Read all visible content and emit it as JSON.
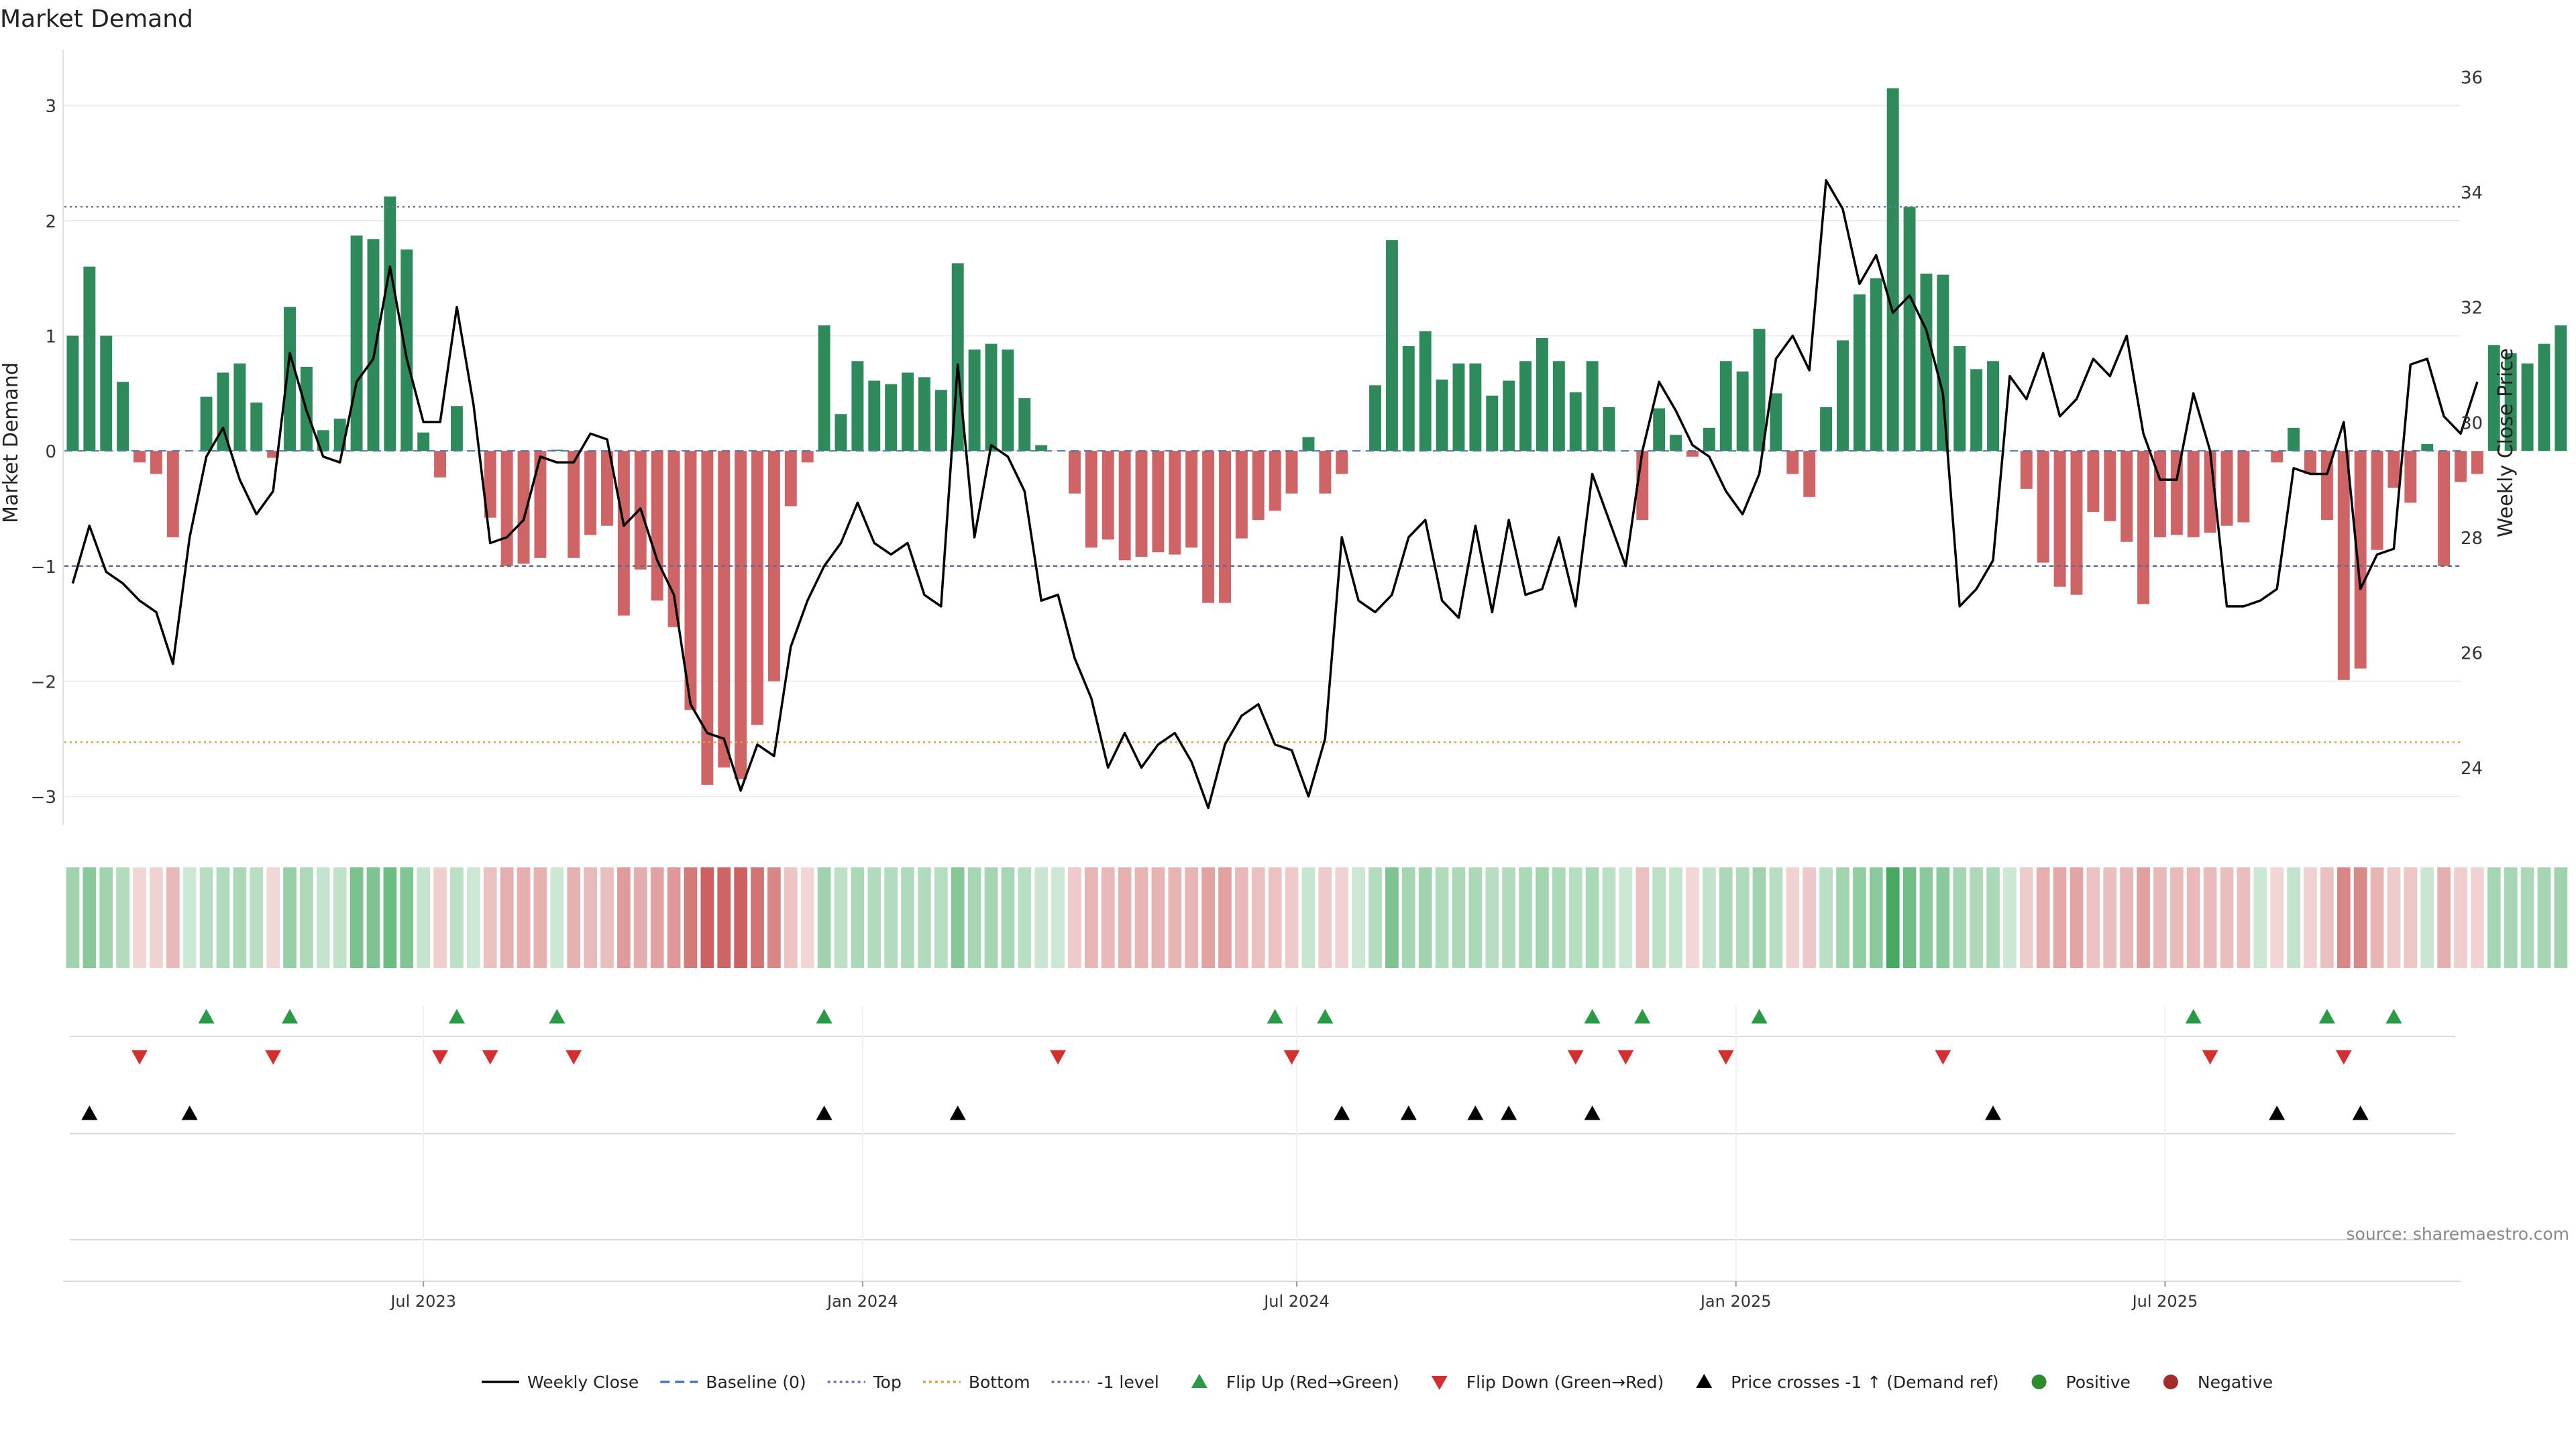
{
  "chart_data": {
    "type": "bar",
    "title": "Market Demand",
    "ylabel": "Market Demand",
    "y2label": "Weekly Close Price",
    "ylim": [
      -3.25,
      3.45
    ],
    "y2lim": [
      23.0,
      36.4
    ],
    "yticks": [
      -3,
      -2,
      -1,
      0,
      1,
      2,
      3
    ],
    "yticklabels": [
      "−3",
      "−2",
      "−1",
      "0",
      "1",
      "2",
      "3"
    ],
    "y2ticks": [
      24,
      26,
      28,
      30,
      32,
      34,
      36
    ],
    "y2ticklabels": [
      "24",
      "26",
      "28",
      "30",
      "32",
      "34",
      "36"
    ],
    "xrange_weeks": [
      0,
      143.5
    ],
    "xticks": [
      {
        "week": 21.5,
        "label": "Jul 2023"
      },
      {
        "week": 47.8,
        "label": "Jan 2024"
      },
      {
        "week": 73.8,
        "label": "Jul 2024"
      },
      {
        "week": 100.1,
        "label": "Jan 2025"
      },
      {
        "week": 125.8,
        "label": "Jul 2025"
      }
    ],
    "reference_lines": {
      "top": 2.12,
      "bottom": -2.53,
      "minus_one_level": -1.0,
      "baseline": 0.0
    },
    "series": [
      {
        "name": "Market Demand",
        "values": [
          1.0,
          1.6,
          1.0,
          0.6,
          -0.1,
          -0.2,
          -0.75,
          0.0,
          0.47,
          0.68,
          0.76,
          0.42,
          -0.06,
          1.25,
          0.73,
          0.18,
          0.28,
          1.87,
          1.84,
          2.21,
          1.75,
          0.16,
          -0.23,
          0.39,
          0.0,
          -0.58,
          -1.0,
          -0.98,
          -0.93,
          0.01,
          -0.93,
          -0.73,
          -0.65,
          -1.43,
          -1.03,
          -1.3,
          -1.53,
          -2.25,
          -2.9,
          -2.75,
          -2.85,
          -2.38,
          -2.0,
          -0.48,
          -0.1,
          1.09,
          0.32,
          0.78,
          0.61,
          0.58,
          0.68,
          0.64,
          0.53,
          1.63,
          0.88,
          0.93,
          0.88,
          0.46,
          0.05,
          0.0,
          -0.37,
          -0.84,
          -0.77,
          -0.95,
          -0.92,
          -0.88,
          -0.9,
          -0.84,
          -1.32,
          -1.32,
          -0.76,
          -0.6,
          -0.52,
          -0.37,
          0.12,
          -0.37,
          -0.2,
          0.0,
          0.57,
          1.83,
          0.91,
          1.04,
          0.62,
          0.76,
          0.76,
          0.48,
          0.61,
          0.78,
          0.98,
          0.78,
          0.51,
          0.78,
          0.38,
          0.0,
          -0.6,
          0.37,
          0.14,
          -0.05,
          0.2,
          0.78,
          0.69,
          1.06,
          0.5,
          -0.2,
          -0.4,
          0.38,
          0.96,
          1.36,
          1.5,
          3.15,
          2.12,
          1.54,
          1.53,
          0.91,
          0.71,
          0.78,
          0.0,
          -0.33,
          -0.97,
          -1.18,
          -1.25,
          -0.53,
          -0.61,
          -0.79,
          -1.33,
          -0.75,
          -0.73,
          -0.75,
          -0.71,
          -0.65,
          -0.62,
          0.0,
          -0.1,
          0.2,
          -0.2,
          -0.6,
          -1.99,
          -1.89,
          -0.86,
          -0.32,
          -0.45,
          0.06,
          -1.0,
          -0.27,
          -0.2,
          0.92,
          0.85,
          0.76,
          0.93,
          1.09
        ]
      },
      {
        "name": "Weekly Close",
        "values": [
          27.2,
          28.2,
          27.4,
          27.2,
          26.9,
          26.7,
          25.8,
          28.0,
          29.4,
          29.9,
          29.0,
          28.4,
          28.8,
          31.2,
          30.2,
          29.4,
          29.3,
          30.7,
          31.1,
          32.7,
          31.1,
          30.0,
          30.0,
          32.0,
          30.3,
          27.9,
          28.0,
          28.3,
          29.4,
          29.3,
          29.3,
          29.8,
          29.7,
          28.2,
          28.5,
          27.6,
          27.0,
          25.1,
          24.6,
          24.5,
          23.6,
          24.4,
          24.2,
          26.1,
          26.9,
          27.5,
          27.9,
          28.6,
          27.9,
          27.7,
          27.9,
          27.0,
          26.8,
          31.0,
          28.0,
          29.6,
          29.4,
          28.8,
          26.9,
          27.0,
          25.9,
          25.2,
          24.0,
          24.6,
          24.0,
          24.4,
          24.6,
          24.1,
          23.3,
          24.4,
          24.9,
          25.1,
          24.4,
          24.3,
          23.5,
          24.5,
          28.0,
          26.9,
          26.7,
          27.0,
          28.0,
          28.3,
          26.9,
          26.6,
          28.2,
          26.7,
          28.3,
          27.0,
          27.1,
          28.0,
          26.8,
          29.1,
          28.3,
          27.5,
          29.5,
          30.7,
          30.2,
          29.6,
          29.4,
          28.8,
          28.4,
          29.1,
          31.1,
          31.5,
          30.9,
          34.2,
          33.7,
          32.4,
          32.9,
          31.9,
          32.2,
          31.6,
          30.5,
          26.8,
          27.1,
          27.6,
          30.8,
          30.4,
          31.2,
          30.1,
          30.4,
          31.1,
          30.8,
          31.5,
          29.8,
          29.0,
          29.0,
          30.5,
          29.5,
          26.8,
          26.8,
          26.9,
          27.1,
          29.2,
          29.1,
          29.1,
          30.0,
          27.1,
          27.7,
          27.8,
          31.0,
          31.1,
          30.1,
          29.8,
          30.7
        ]
      }
    ],
    "flip_up_weeks": [
      8,
      13,
      23,
      29,
      45,
      72,
      75,
      91,
      94,
      101,
      127,
      135,
      139
    ],
    "flip_down_weeks": [
      4,
      12,
      22,
      25,
      30,
      59,
      73,
      90,
      93,
      99,
      112,
      128,
      136
    ],
    "price_cross_weeks": [
      1,
      7,
      45,
      53,
      76,
      80,
      84,
      86,
      91,
      115,
      132,
      137
    ],
    "legend": [
      {
        "label": "Weekly Close",
        "kind": "line-solid",
        "color": "#000000"
      },
      {
        "label": "Baseline (0)",
        "kind": "line-dashed",
        "color": "#4a76b0"
      },
      {
        "label": "Top",
        "kind": "line-dotted",
        "color": "#6d6fb8"
      },
      {
        "label": "Bottom",
        "kind": "line-dotted",
        "color": "#d9a23b"
      },
      {
        "label": "-1 level",
        "kind": "line-dotted",
        "color": "#6a6a8c"
      },
      {
        "label": "Flip Up (Red→Green)",
        "kind": "tri-up",
        "color": "#2a9a47"
      },
      {
        "label": "Flip Down (Green→Red)",
        "kind": "tri-down",
        "color": "#d32f2f"
      },
      {
        "label": "Price crosses -1 ↑ (Demand ref)",
        "kind": "tri-up",
        "color": "#000000"
      },
      {
        "label": "Positive",
        "kind": "dot",
        "color": "#2e8b2e"
      },
      {
        "label": "Negative",
        "kind": "dot",
        "color": "#a52a2a"
      }
    ],
    "colors": {
      "positive_bar": "#2e8a5a",
      "negative_bar": "#cf6466",
      "price_line": "#000000",
      "top_line": "#6d6fb8",
      "bottom_line": "#d9a23b",
      "minus_one_line": "#6a6a8c",
      "baseline_line": "#4a76b0",
      "flip_up": "#2a9a47",
      "flip_down": "#d32f2f",
      "price_cross": "#000000"
    },
    "source": "source: sharemaestro.com"
  }
}
